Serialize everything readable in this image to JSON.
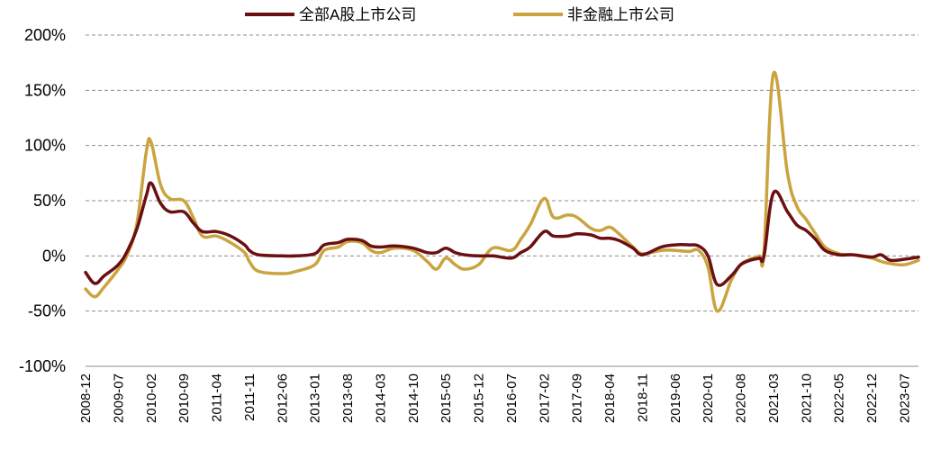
{
  "chart_data": {
    "type": "line",
    "title": "",
    "xlabel": "",
    "ylabel": "",
    "ylim": [
      -100,
      200
    ],
    "y_ticks": [
      "200%",
      "150%",
      "100%",
      "50%",
      "0%",
      "-50%",
      "-100%"
    ],
    "y_tick_values": [
      200,
      150,
      100,
      50,
      0,
      -50,
      -100
    ],
    "x_tick_labels": [
      "2008-12",
      "2009-07",
      "2010-02",
      "2010-09",
      "2011-04",
      "2011-11",
      "2012-06",
      "2013-01",
      "2013-08",
      "2014-03",
      "2014-10",
      "2015-05",
      "2015-12",
      "2016-07",
      "2017-02",
      "2017-09",
      "2018-04",
      "2018-11",
      "2019-06",
      "2020-01",
      "2020-08",
      "2021-03",
      "2021-10",
      "2022-05",
      "2022-12",
      "2023-07"
    ],
    "x_range": [
      "2008-12",
      "2023-10"
    ],
    "grid": true,
    "legend_position": "top-center",
    "series": [
      {
        "name": "全部A股上市公司",
        "color": "#6b0f12",
        "points": [
          [
            "2008-12",
            -15
          ],
          [
            "2009-02",
            -25
          ],
          [
            "2009-04",
            -18
          ],
          [
            "2009-07",
            -8
          ],
          [
            "2009-09",
            5
          ],
          [
            "2009-11",
            25
          ],
          [
            "2010-01",
            55
          ],
          [
            "2010-02",
            66
          ],
          [
            "2010-04",
            48
          ],
          [
            "2010-06",
            40
          ],
          [
            "2010-09",
            40
          ],
          [
            "2010-11",
            30
          ],
          [
            "2011-01",
            22
          ],
          [
            "2011-04",
            22
          ],
          [
            "2011-07",
            18
          ],
          [
            "2011-10",
            10
          ],
          [
            "2011-11",
            5
          ],
          [
            "2012-01",
            1
          ],
          [
            "2012-06",
            0
          ],
          [
            "2012-09",
            0
          ],
          [
            "2013-01",
            2
          ],
          [
            "2013-03",
            10
          ],
          [
            "2013-06",
            12
          ],
          [
            "2013-08",
            15
          ],
          [
            "2013-11",
            14
          ],
          [
            "2014-01",
            9
          ],
          [
            "2014-03",
            8
          ],
          [
            "2014-06",
            9
          ],
          [
            "2014-10",
            7
          ],
          [
            "2015-01",
            3
          ],
          [
            "2015-03",
            3
          ],
          [
            "2015-05",
            7
          ],
          [
            "2015-07",
            3
          ],
          [
            "2015-09",
            1
          ],
          [
            "2015-12",
            0
          ],
          [
            "2016-03",
            0
          ],
          [
            "2016-07",
            -2
          ],
          [
            "2016-09",
            3
          ],
          [
            "2016-11",
            8
          ],
          [
            "2017-02",
            22
          ],
          [
            "2017-04",
            18
          ],
          [
            "2017-07",
            18
          ],
          [
            "2017-09",
            20
          ],
          [
            "2017-12",
            19
          ],
          [
            "2018-02",
            16
          ],
          [
            "2018-04",
            16
          ],
          [
            "2018-06",
            14
          ],
          [
            "2018-09",
            7
          ],
          [
            "2018-11",
            1
          ],
          [
            "2019-03",
            8
          ],
          [
            "2019-06",
            10
          ],
          [
            "2019-09",
            10
          ],
          [
            "2019-11",
            9
          ],
          [
            "2020-01",
            0
          ],
          [
            "2020-03",
            -26
          ],
          [
            "2020-06",
            -18
          ],
          [
            "2020-08",
            -8
          ],
          [
            "2020-10",
            -4
          ],
          [
            "2020-12",
            -2
          ],
          [
            "2021-01",
            0
          ],
          [
            "2021-03",
            57
          ],
          [
            "2021-06",
            40
          ],
          [
            "2021-08",
            28
          ],
          [
            "2021-10",
            23
          ],
          [
            "2021-12",
            15
          ],
          [
            "2022-02",
            5
          ],
          [
            "2022-05",
            1
          ],
          [
            "2022-08",
            1
          ],
          [
            "2022-12",
            -1
          ],
          [
            "2023-02",
            1
          ],
          [
            "2023-04",
            -4
          ],
          [
            "2023-07",
            -3
          ],
          [
            "2023-10",
            -1
          ]
        ]
      },
      {
        "name": "非金融上市公司",
        "color": "#c9a43f",
        "points": [
          [
            "2008-12",
            -30
          ],
          [
            "2009-02",
            -37
          ],
          [
            "2009-04",
            -28
          ],
          [
            "2009-07",
            -12
          ],
          [
            "2009-09",
            2
          ],
          [
            "2009-11",
            30
          ],
          [
            "2010-01",
            95
          ],
          [
            "2010-02",
            103
          ],
          [
            "2010-04",
            65
          ],
          [
            "2010-06",
            52
          ],
          [
            "2010-09",
            50
          ],
          [
            "2010-11",
            35
          ],
          [
            "2011-01",
            18
          ],
          [
            "2011-04",
            18
          ],
          [
            "2011-07",
            12
          ],
          [
            "2011-10",
            3
          ],
          [
            "2011-11",
            -5
          ],
          [
            "2012-01",
            -14
          ],
          [
            "2012-06",
            -16
          ],
          [
            "2012-09",
            -14
          ],
          [
            "2013-01",
            -8
          ],
          [
            "2013-03",
            5
          ],
          [
            "2013-06",
            8
          ],
          [
            "2013-08",
            13
          ],
          [
            "2013-11",
            12
          ],
          [
            "2014-01",
            5
          ],
          [
            "2014-03",
            3
          ],
          [
            "2014-06",
            7
          ],
          [
            "2014-10",
            5
          ],
          [
            "2015-01",
            -5
          ],
          [
            "2015-03",
            -12
          ],
          [
            "2015-05",
            -2
          ],
          [
            "2015-07",
            -8
          ],
          [
            "2015-09",
            -12
          ],
          [
            "2015-12",
            -8
          ],
          [
            "2016-03",
            7
          ],
          [
            "2016-07",
            5
          ],
          [
            "2016-09",
            15
          ],
          [
            "2016-11",
            28
          ],
          [
            "2017-02",
            52
          ],
          [
            "2017-04",
            35
          ],
          [
            "2017-07",
            37
          ],
          [
            "2017-09",
            35
          ],
          [
            "2017-12",
            25
          ],
          [
            "2018-02",
            23
          ],
          [
            "2018-04",
            26
          ],
          [
            "2018-06",
            20
          ],
          [
            "2018-09",
            8
          ],
          [
            "2018-11",
            2
          ],
          [
            "2019-03",
            5
          ],
          [
            "2019-06",
            5
          ],
          [
            "2019-09",
            4
          ],
          [
            "2019-11",
            5
          ],
          [
            "2020-01",
            -10
          ],
          [
            "2020-03",
            -50
          ],
          [
            "2020-06",
            -22
          ],
          [
            "2020-08",
            -8
          ],
          [
            "2020-10",
            -3
          ],
          [
            "2020-12",
            0
          ],
          [
            "2021-01",
            5
          ],
          [
            "2021-03",
            165
          ],
          [
            "2021-06",
            75
          ],
          [
            "2021-08",
            45
          ],
          [
            "2021-10",
            33
          ],
          [
            "2021-12",
            20
          ],
          [
            "2022-02",
            8
          ],
          [
            "2022-05",
            2
          ],
          [
            "2022-08",
            1
          ],
          [
            "2022-12",
            -2
          ],
          [
            "2023-02",
            -5
          ],
          [
            "2023-04",
            -7
          ],
          [
            "2023-07",
            -8
          ],
          [
            "2023-10",
            -4
          ]
        ]
      }
    ]
  }
}
